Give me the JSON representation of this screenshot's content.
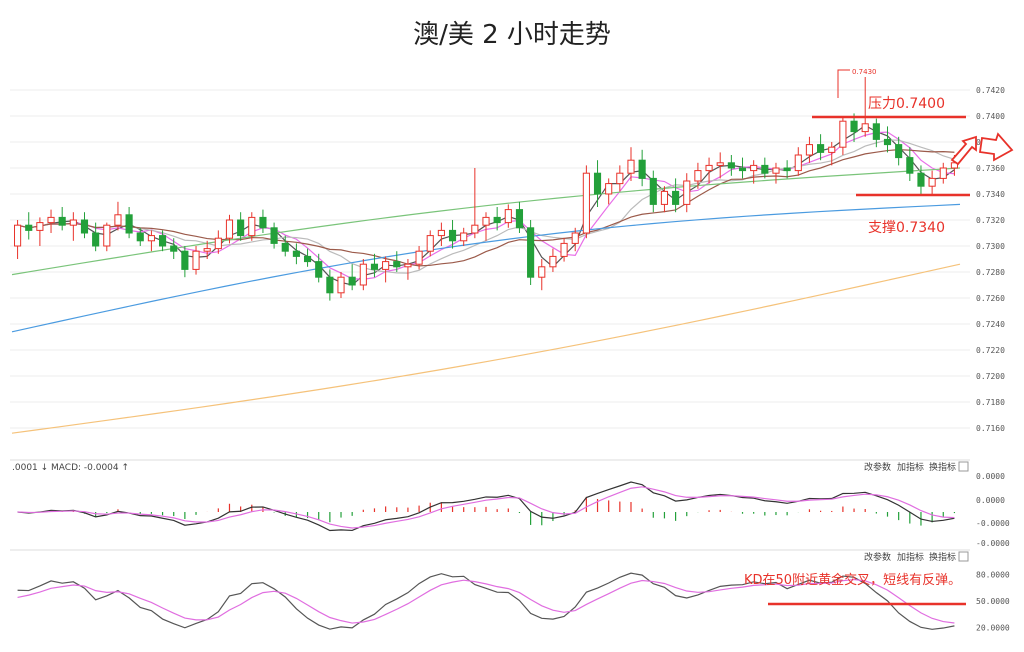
{
  "title": "澳/美 2 小时走势",
  "colors": {
    "up": "#e8322a",
    "down": "#23a03a",
    "ma5": "#555555",
    "ma10": "#e86ee8",
    "ma20": "#bbbbbb",
    "ma30": "#9b5a4a",
    "ma60": "#7ac47a",
    "ma120": "#4b9be0",
    "ma250": "#f5c27a",
    "dif": "#333333",
    "dea": "#e06ee0",
    "k": "#555555",
    "d": "#e06ee0",
    "annotation": "#e8322a"
  },
  "price_ticks": [
    "0.7420",
    "0.7400",
    "0.7380",
    "0.7360",
    "0.7340",
    "0.7320",
    "0.7300",
    "0.7280",
    "0.7260",
    "0.7240",
    "0.7220",
    "0.7200",
    "0.7180",
    "0.7160"
  ],
  "macd_ticks": [
    "0.0000",
    "0.0000",
    "-0.0000",
    "-0.0000"
  ],
  "kd_ticks": [
    "80.0000",
    "50.0000",
    "20.0000"
  ],
  "panel_controls": [
    "改参数",
    "加指标",
    "换指标"
  ],
  "macd_label": ".0001 ↓ MACD: -0.0004 ↑",
  "annotations": {
    "high_label": "0.7430",
    "resistance": "压力0.7400",
    "support": "支撑0.7340",
    "kd_note": "KD在50附近黄金交叉，短线有反弹。"
  },
  "chart_data": {
    "type": "candlestick",
    "title": "澳/美 2 小时走势",
    "y_range": [
      0.7148,
      0.744
    ],
    "resistance_level": 0.74,
    "support_level": 0.734,
    "recent_high": 0.743,
    "candles": [
      [
        0.73,
        0.732,
        0.729,
        0.7316
      ],
      [
        0.7316,
        0.7326,
        0.7305,
        0.7312
      ],
      [
        0.7312,
        0.7322,
        0.73,
        0.7318
      ],
      [
        0.7318,
        0.7328,
        0.731,
        0.7322
      ],
      [
        0.7322,
        0.733,
        0.7312,
        0.7316
      ],
      [
        0.7316,
        0.7326,
        0.7304,
        0.732
      ],
      [
        0.732,
        0.7326,
        0.7306,
        0.731
      ],
      [
        0.731,
        0.7318,
        0.7296,
        0.73
      ],
      [
        0.73,
        0.7318,
        0.7296,
        0.7316
      ],
      [
        0.7316,
        0.7334,
        0.7312,
        0.7324
      ],
      [
        0.7324,
        0.733,
        0.7306,
        0.731
      ],
      [
        0.731,
        0.7314,
        0.73,
        0.7304
      ],
      [
        0.7304,
        0.7312,
        0.7296,
        0.7308
      ],
      [
        0.7308,
        0.7312,
        0.7296,
        0.73
      ],
      [
        0.73,
        0.7306,
        0.729,
        0.7296
      ],
      [
        0.7296,
        0.73,
        0.7276,
        0.7282
      ],
      [
        0.7282,
        0.73,
        0.7278,
        0.7296
      ],
      [
        0.7296,
        0.7304,
        0.729,
        0.7298
      ],
      [
        0.7298,
        0.7312,
        0.7294,
        0.7306
      ],
      [
        0.7306,
        0.7324,
        0.7302,
        0.732
      ],
      [
        0.732,
        0.7326,
        0.7304,
        0.7308
      ],
      [
        0.7308,
        0.7326,
        0.7304,
        0.7322
      ],
      [
        0.7322,
        0.7328,
        0.731,
        0.7314
      ],
      [
        0.7314,
        0.7318,
        0.7298,
        0.7302
      ],
      [
        0.7302,
        0.7308,
        0.7292,
        0.7296
      ],
      [
        0.7296,
        0.7302,
        0.7286,
        0.7292
      ],
      [
        0.7292,
        0.7298,
        0.7284,
        0.7288
      ],
      [
        0.7288,
        0.7294,
        0.7272,
        0.7276
      ],
      [
        0.7276,
        0.7282,
        0.7258,
        0.7264
      ],
      [
        0.7264,
        0.728,
        0.726,
        0.7276
      ],
      [
        0.7276,
        0.7286,
        0.7266,
        0.727
      ],
      [
        0.727,
        0.729,
        0.7266,
        0.7286
      ],
      [
        0.7286,
        0.7294,
        0.7276,
        0.7282
      ],
      [
        0.7282,
        0.7292,
        0.7272,
        0.7288
      ],
      [
        0.7288,
        0.7296,
        0.728,
        0.7284
      ],
      [
        0.7284,
        0.729,
        0.7274,
        0.7286
      ],
      [
        0.7286,
        0.73,
        0.7282,
        0.7296
      ],
      [
        0.7296,
        0.7312,
        0.7292,
        0.7308
      ],
      [
        0.7308,
        0.7318,
        0.73,
        0.7312
      ],
      [
        0.7312,
        0.732,
        0.7298,
        0.7304
      ],
      [
        0.7304,
        0.7314,
        0.73,
        0.731
      ],
      [
        0.731,
        0.736,
        0.7306,
        0.7316
      ],
      [
        0.7316,
        0.7326,
        0.7304,
        0.7322
      ],
      [
        0.7322,
        0.733,
        0.7312,
        0.7318
      ],
      [
        0.7318,
        0.7332,
        0.7314,
        0.7328
      ],
      [
        0.7328,
        0.7334,
        0.731,
        0.7314
      ],
      [
        0.7314,
        0.732,
        0.727,
        0.7276
      ],
      [
        0.7276,
        0.729,
        0.7266,
        0.7284
      ],
      [
        0.7284,
        0.7298,
        0.728,
        0.7292
      ],
      [
        0.7292,
        0.7306,
        0.7288,
        0.7302
      ],
      [
        0.7302,
        0.7314,
        0.7296,
        0.731
      ],
      [
        0.731,
        0.7362,
        0.7306,
        0.7356
      ],
      [
        0.7356,
        0.7366,
        0.733,
        0.734
      ],
      [
        0.734,
        0.7352,
        0.7332,
        0.7348
      ],
      [
        0.7348,
        0.7362,
        0.7342,
        0.7356
      ],
      [
        0.7356,
        0.7376,
        0.735,
        0.7366
      ],
      [
        0.7366,
        0.7374,
        0.7346,
        0.7352
      ],
      [
        0.7352,
        0.7358,
        0.7326,
        0.7332
      ],
      [
        0.7332,
        0.7346,
        0.7326,
        0.7342
      ],
      [
        0.7342,
        0.7352,
        0.7326,
        0.7332
      ],
      [
        0.7332,
        0.7356,
        0.7326,
        0.735
      ],
      [
        0.735,
        0.7364,
        0.7344,
        0.7358
      ],
      [
        0.7358,
        0.7368,
        0.7348,
        0.7362
      ],
      [
        0.7362,
        0.7372,
        0.7352,
        0.7364
      ],
      [
        0.7364,
        0.737,
        0.7354,
        0.736
      ],
      [
        0.736,
        0.7368,
        0.7352,
        0.7358
      ],
      [
        0.7358,
        0.7366,
        0.7348,
        0.7362
      ],
      [
        0.7362,
        0.7368,
        0.7352,
        0.7356
      ],
      [
        0.7356,
        0.7364,
        0.7348,
        0.736
      ],
      [
        0.736,
        0.7366,
        0.7352,
        0.7358
      ],
      [
        0.7358,
        0.7376,
        0.7354,
        0.737
      ],
      [
        0.737,
        0.7384,
        0.7364,
        0.7378
      ],
      [
        0.7378,
        0.7386,
        0.7366,
        0.7372
      ],
      [
        0.7372,
        0.738,
        0.7362,
        0.7376
      ],
      [
        0.7376,
        0.74,
        0.737,
        0.7396
      ],
      [
        0.7396,
        0.7402,
        0.738,
        0.7388
      ],
      [
        0.7388,
        0.743,
        0.7384,
        0.7394
      ],
      [
        0.7394,
        0.7398,
        0.7376,
        0.7382
      ],
      [
        0.7382,
        0.7392,
        0.7372,
        0.7378
      ],
      [
        0.7378,
        0.7384,
        0.7362,
        0.7368
      ],
      [
        0.7368,
        0.7376,
        0.735,
        0.7356
      ],
      [
        0.7356,
        0.7362,
        0.734,
        0.7346
      ],
      [
        0.7346,
        0.7358,
        0.734,
        0.7352
      ],
      [
        0.7352,
        0.7364,
        0.7348,
        0.736
      ],
      [
        0.736,
        0.737,
        0.7354,
        0.7364
      ]
    ],
    "ma_series": [
      {
        "start": 0.7292,
        "end": 0.7376
      },
      {
        "start": 0.7294,
        "end": 0.7374
      },
      {
        "start": 0.7304,
        "end": 0.7378
      },
      {
        "start": 0.728,
        "end": 0.737
      },
      {
        "start": 0.7278,
        "end": 0.736
      },
      {
        "start": 0.7234,
        "end": 0.7332
      },
      {
        "start": 0.7156,
        "end": 0.7286
      }
    ]
  }
}
